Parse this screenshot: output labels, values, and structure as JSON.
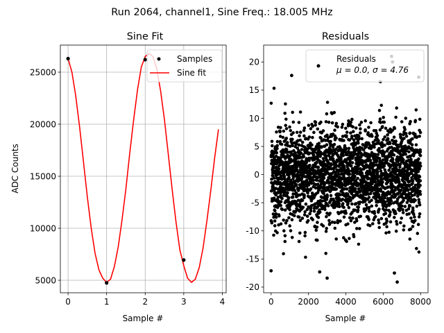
{
  "suptitle": "Run 2064, channel1, Sine Freq.: 18.005 MHz",
  "chart_data": [
    {
      "type": "line",
      "title": "Sine Fit",
      "xlabel": "Sample #",
      "ylabel": "ADC Counts",
      "xlim": [
        -0.2,
        4.1
      ],
      "ylim": [
        3800,
        27600
      ],
      "xticks": [
        0,
        1,
        2,
        3,
        4
      ],
      "yticks": [
        5000,
        10000,
        15000,
        20000,
        25000
      ],
      "grid": true,
      "legend": {
        "position": "top-right",
        "entries": [
          "Samples",
          "Sine fit"
        ]
      },
      "series": [
        {
          "name": "Samples",
          "kind": "scatter",
          "color": "#000000",
          "x": [
            0,
            1,
            2,
            3
          ],
          "y": [
            26300,
            4750,
            26200,
            6950
          ]
        },
        {
          "name": "Sine fit",
          "kind": "line",
          "color": "#ff0000",
          "x": [
            0.0,
            0.1,
            0.2,
            0.3,
            0.4,
            0.5,
            0.6,
            0.7,
            0.8,
            0.9,
            1.0,
            1.1,
            1.2,
            1.3,
            1.4,
            1.5,
            1.6,
            1.7,
            1.8,
            1.9,
            2.0,
            2.1,
            2.2,
            2.3,
            2.4,
            2.5,
            2.6,
            2.7,
            2.8,
            2.9,
            3.0,
            3.1,
            3.2,
            3.3,
            3.4,
            3.5,
            3.6,
            3.7,
            3.8,
            3.9
          ],
          "y": [
            26300,
            25000,
            22700,
            19700,
            16400,
            13000,
            10000,
            7600,
            6000,
            5200,
            4800,
            5100,
            6300,
            8200,
            10800,
            13800,
            17200,
            20400,
            23300,
            25500,
            26500,
            26800,
            26500,
            25300,
            23200,
            20400,
            17100,
            13700,
            10600,
            7900,
            6400,
            5200,
            4800,
            5100,
            6200,
            8100,
            10700,
            13600,
            16700,
            19500
          ]
        }
      ]
    },
    {
      "type": "scatter",
      "title": "Residuals",
      "xlabel": "Sample #",
      "ylabel": "",
      "xlim": [
        -400,
        8400
      ],
      "ylim": [
        -21,
        23
      ],
      "xticks": [
        0,
        2000,
        4000,
        6000,
        8000
      ],
      "yticks": [
        -20,
        -15,
        -10,
        -5,
        0,
        5,
        10,
        15,
        20
      ],
      "grid": false,
      "legend": {
        "position": "top-right",
        "entries": [
          "Residuals\n$\\mu$ = 0.0, $\\sigma$ = 4.76"
        ]
      },
      "series": [
        {
          "name": "Residuals\n$\\mu$ = 0.0, $\\sigma$ = 4.76",
          "kind": "scatter",
          "color": "#000000",
          "n_points": 8000,
          "mean": 0.0,
          "std": 4.76,
          "x_range": [
            0,
            8000
          ],
          "outliers": [
            {
              "x": 0,
              "y": -17.1
            },
            {
              "x": 2600,
              "y": -17.3
            },
            {
              "x": 3000,
              "y": -18.4
            },
            {
              "x": 6750,
              "y": -19.1
            },
            {
              "x": 6450,
              "y": 21.0
            },
            {
              "x": 7900,
              "y": 17.3
            },
            {
              "x": 6500,
              "y": 20.0
            },
            {
              "x": 5850,
              "y": 16.5
            },
            {
              "x": 6600,
              "y": -17.5
            },
            {
              "x": 1100,
              "y": 17.6
            }
          ]
        }
      ]
    }
  ],
  "colors": {
    "line": "#ff0000",
    "marker": "#000000",
    "grid": "#b0b0b0"
  }
}
